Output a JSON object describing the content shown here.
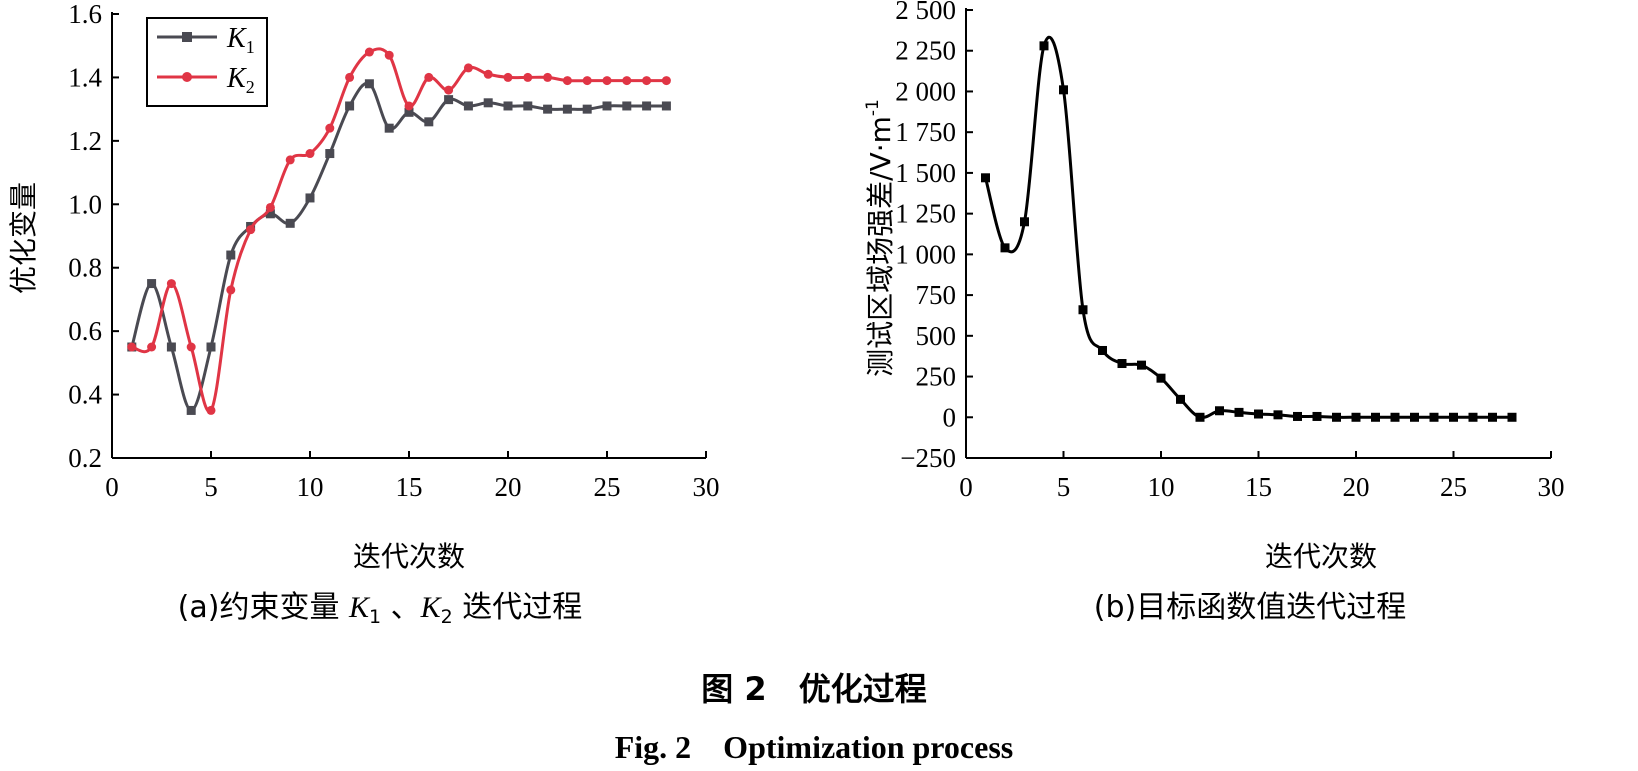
{
  "figure": {
    "title_cn": "图 2　优化过程",
    "title_en": "Fig. 2　Optimization process"
  },
  "chart_data": [
    {
      "type": "line",
      "caption": "(a)约束变量 K1 、K2 迭代过程",
      "caption_parts": {
        "pre": "(a)约束变量 ",
        "k": "K",
        "s1": "1",
        "sep": " 、",
        "s2": "2",
        "post": " 迭代过程"
      },
      "xlabel": "迭代次数",
      "ylabel": "优化变量",
      "xlim": [
        0,
        30
      ],
      "ylim": [
        0.2,
        1.6
      ],
      "xticks": [
        "0",
        "5",
        "10",
        "15",
        "20",
        "25",
        "30"
      ],
      "yticks": [
        "0.2",
        "0.4",
        "0.6",
        "0.8",
        "1.0",
        "1.2",
        "1.4",
        "1.6"
      ],
      "legend_position": "top-left",
      "series": [
        {
          "name": "K1",
          "legend_main": "K",
          "legend_sub": "1",
          "color": "#4a4a52",
          "marker": "square",
          "x": [
            1,
            2,
            3,
            4,
            5,
            6,
            7,
            8,
            9,
            10,
            11,
            12,
            13,
            14,
            15,
            16,
            17,
            18,
            19,
            20,
            21,
            22,
            23,
            24,
            25,
            26,
            27,
            28
          ],
          "y": [
            0.55,
            0.75,
            0.55,
            0.35,
            0.55,
            0.84,
            0.93,
            0.97,
            0.94,
            1.02,
            1.16,
            1.31,
            1.38,
            1.24,
            1.29,
            1.26,
            1.33,
            1.31,
            1.32,
            1.31,
            1.31,
            1.3,
            1.3,
            1.3,
            1.31,
            1.31,
            1.31,
            1.31
          ]
        },
        {
          "name": "K2",
          "legend_main": "K",
          "legend_sub": "2",
          "color": "#e03545",
          "marker": "circle",
          "x": [
            1,
            2,
            3,
            4,
            5,
            6,
            7,
            8,
            9,
            10,
            11,
            12,
            13,
            14,
            15,
            16,
            17,
            18,
            19,
            20,
            21,
            22,
            23,
            24,
            25,
            26,
            27,
            28
          ],
          "y": [
            0.55,
            0.55,
            0.75,
            0.55,
            0.35,
            0.73,
            0.92,
            0.99,
            1.14,
            1.16,
            1.24,
            1.4,
            1.48,
            1.47,
            1.31,
            1.4,
            1.36,
            1.43,
            1.41,
            1.4,
            1.4,
            1.4,
            1.39,
            1.39,
            1.39,
            1.39,
            1.39,
            1.39
          ]
        }
      ]
    },
    {
      "type": "line",
      "caption": "(b)目标函数值迭代过程",
      "xlabel": "迭代次数",
      "ylabel": "测试区域场强差/V·m",
      "ylabel_sup": "-1",
      "xlim": [
        0,
        30
      ],
      "ylim": [
        -250,
        2500
      ],
      "xticks": [
        "0",
        "5",
        "10",
        "15",
        "20",
        "25",
        "30"
      ],
      "yticks": [
        "−250",
        "0",
        "250",
        "500",
        "750",
        "1 000",
        "1 250",
        "1 500",
        "1 750",
        "2 000",
        "2 250",
        "2 500"
      ],
      "series": [
        {
          "color": "#000000",
          "marker": "square",
          "x": [
            1,
            2,
            3,
            4,
            5,
            6,
            7,
            8,
            9,
            10,
            11,
            12,
            13,
            14,
            15,
            16,
            17,
            18,
            19,
            20,
            21,
            22,
            23,
            24,
            25,
            26,
            27,
            28
          ],
          "y": [
            1470,
            1040,
            1200,
            2280,
            2010,
            660,
            410,
            330,
            320,
            240,
            110,
            0,
            40,
            30,
            20,
            15,
            5,
            5,
            0,
            0,
            0,
            0,
            0,
            0,
            0,
            0,
            0,
            0
          ]
        }
      ]
    }
  ]
}
